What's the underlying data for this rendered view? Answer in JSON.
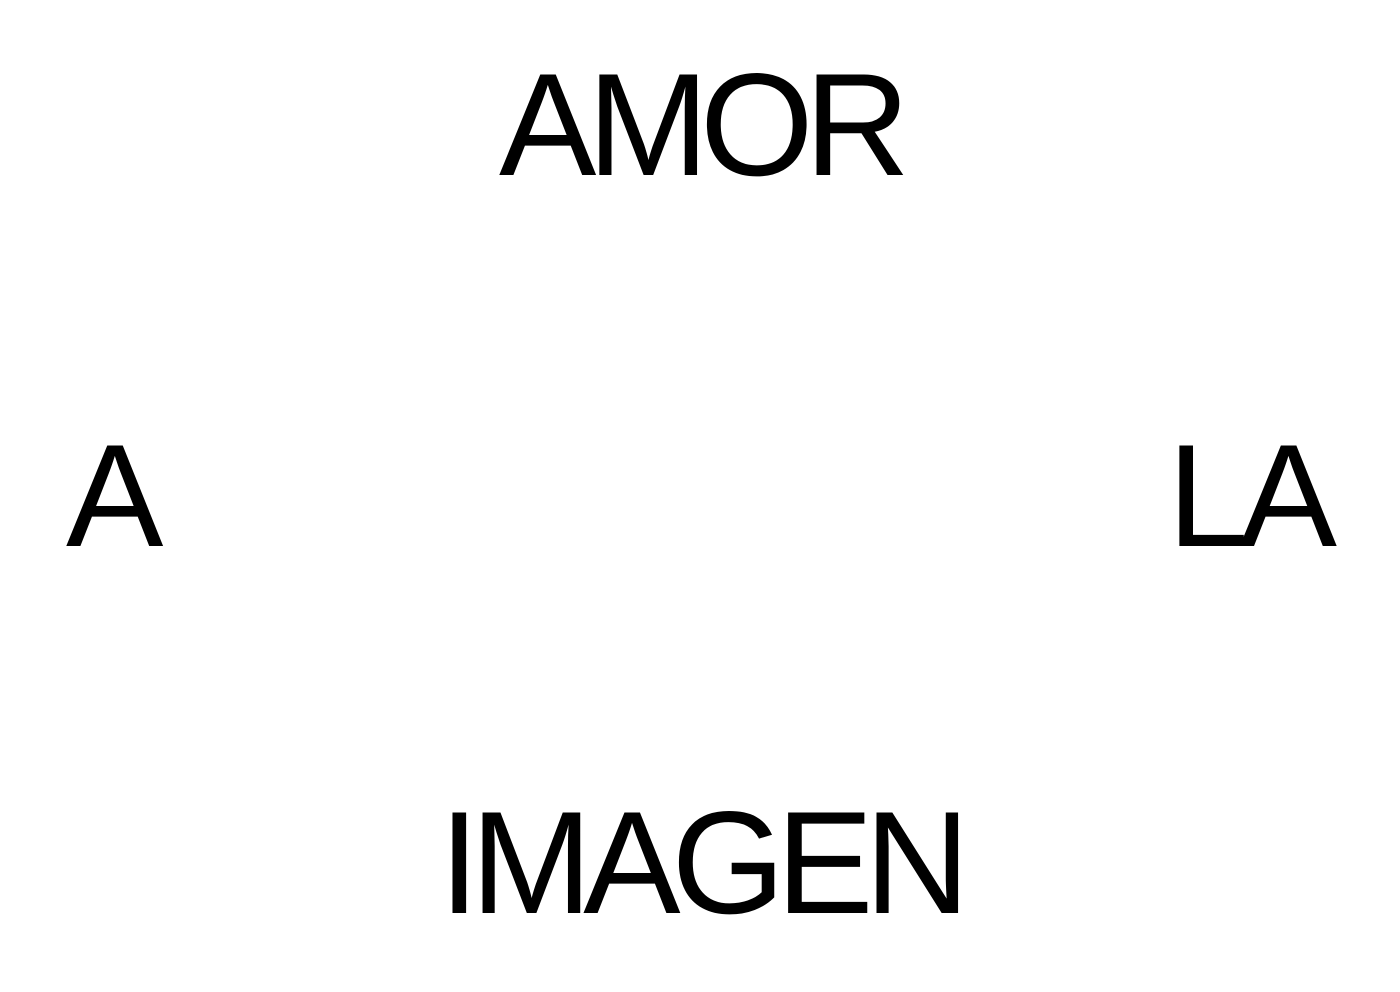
{
  "words": {
    "top": "AMOR",
    "left": "A",
    "right": "LA",
    "bottom": "IMAGEN"
  },
  "colors": {
    "background": "#ffffff",
    "text": "#000000"
  }
}
